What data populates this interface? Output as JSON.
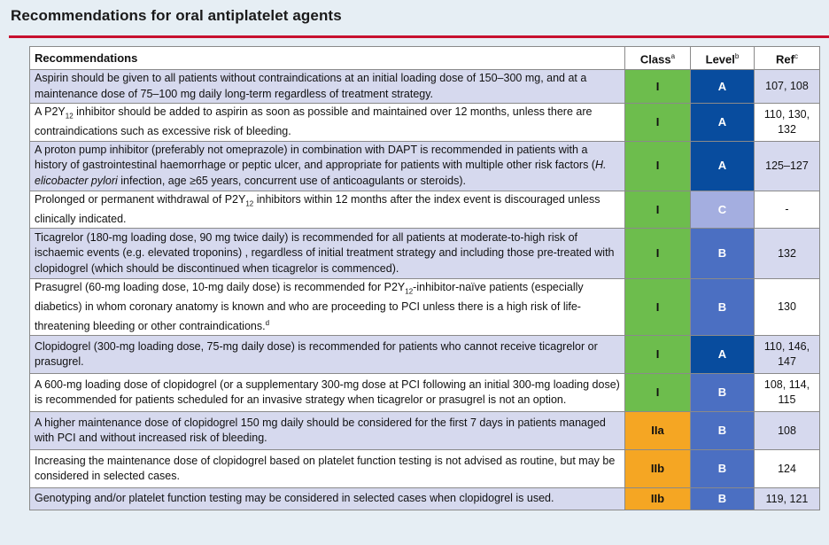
{
  "title": "Recommendations for oral antiplatelet agents",
  "headers": {
    "recommendations": "Recommendations",
    "class": "Class",
    "class_sup": "a",
    "level": "Level",
    "level_sup": "b",
    "ref": "Ref",
    "ref_sup": "c"
  },
  "rows": [
    {
      "text": [
        "Aspirin should be given to all patients without contraindications at an initial loading dose of 150–300 mg, and at a maintenance dose of 75–100 mg daily long-term regardless of treatment strategy."
      ],
      "class": "I",
      "level": "A",
      "ref": "107, 108"
    },
    {
      "text": [
        "A P2Y",
        "12",
        " inhibitor should be added to aspirin as soon as possible and maintained over 12 months, unless there are contraindications such as excessive risk of bleeding."
      ],
      "class": "I",
      "level": "A",
      "ref": "110, 130, 132"
    },
    {
      "text": [
        "A proton pump inhibitor (preferably not omeprazole) in combination with DAPT is recommended in patients with a history of gastrointestinal haemorrhage or peptic ulcer, and appropriate for patients with multiple other risk factors (",
        "H. elicobacter pylori",
        " infection, age ≥65 years, concurrent use of anticoagulants or steroids)."
      ],
      "class": "I",
      "level": "A",
      "ref": "125–127"
    },
    {
      "text": [
        "Prolonged or permanent withdrawal of P2Y",
        "12",
        " inhibitors within 12 months after the index event is discouraged unless clinically indicated."
      ],
      "class": "I",
      "level": "C",
      "ref": "-"
    },
    {
      "text": [
        "Ticagrelor (180-mg loading dose, 90 mg twice daily) is recommended for all patients at moderate-to-high risk of ischaemic events (e.g. elevated troponins) , regardless of initial treatment strategy and including those pre-treated with clopidogrel (which should be discontinued when ticagrelor is commenced)."
      ],
      "class": "I",
      "level": "B",
      "ref": "132"
    },
    {
      "text": [
        "Prasugrel (60-mg loading dose, 10-mg daily dose) is recommended for P2Y",
        "12",
        "-inhibitor-naïve patients (especially diabetics) in whom coronary anatomy is known and who are proceeding to PCI unless there is a high risk of life-threatening bleeding or other contraindications.",
        "d"
      ],
      "class": "I",
      "level": "B",
      "ref": "130"
    },
    {
      "text": [
        "Clopidogrel (300-mg loading dose, 75-mg daily dose) is recommended for patients who cannot receive ticagrelor or prasugrel."
      ],
      "class": "I",
      "level": "A",
      "ref": "110, 146, 147"
    },
    {
      "text": [
        "A 600-mg loading dose of clopidogrel (or a supplementary 300-mg dose at PCI following an initial 300-mg loading dose) is recommended for patients scheduled for an invasive strategy when ticagrelor or prasugrel is not an option."
      ],
      "class": "I",
      "level": "B",
      "ref": "108, 114, 115"
    },
    {
      "text": [
        "A higher maintenance dose of clopidogrel 150 mg daily should be considered for the first 7 days in patients managed with PCI and without increased risk of bleeding."
      ],
      "class": "IIa",
      "level": "B",
      "ref": "108"
    },
    {
      "text": [
        "Increasing the maintenance dose of clopidogrel based on platelet function testing is not advised as routine, but may be considered in selected cases."
      ],
      "class": "IIb",
      "level": "B",
      "ref": "124"
    },
    {
      "text": [
        "Genotyping and/or platelet function testing may be considered in selected cases when clopidogrel is used."
      ],
      "class": "IIb",
      "level": "B",
      "ref": "119, 121"
    }
  ],
  "colors": {
    "class_I": "#6dbd4d",
    "class_IIa_IIb": "#f5a623",
    "level_A": "#084c9e",
    "level_B": "#4b6fc2",
    "level_C": "#a4aee0",
    "shade": "#d6d9ee",
    "rule": "#c8102e"
  }
}
